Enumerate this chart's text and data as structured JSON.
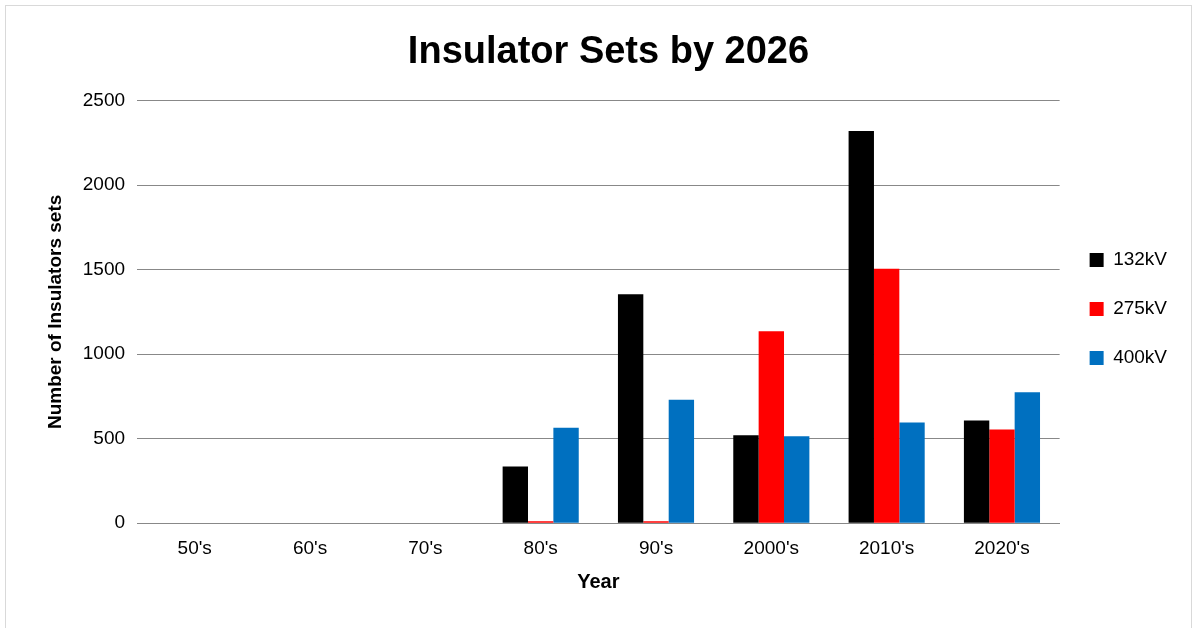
{
  "chart_data": {
    "type": "bar",
    "title": "Insulator Sets by 2026",
    "xlabel": "Year",
    "ylabel": "Number of Insulators sets",
    "categories": [
      "50's",
      "60's",
      "70's",
      "80's",
      "90's",
      "2000's",
      "2010's",
      "2020's"
    ],
    "series": [
      {
        "name": "132kV",
        "color": "#000000",
        "values": [
          0,
          0,
          0,
          335,
          1355,
          520,
          2320,
          608
        ]
      },
      {
        "name": "275kV",
        "color": "#ff0000",
        "values": [
          0,
          0,
          0,
          12,
          12,
          1135,
          1505,
          555
        ]
      },
      {
        "name": "400kV",
        "color": "#0070c0",
        "values": [
          0,
          0,
          0,
          565,
          730,
          515,
          595,
          775
        ]
      }
    ],
    "ylim": [
      0,
      2500
    ],
    "yticks": [
      0,
      500,
      1000,
      1500,
      2000,
      2500
    ],
    "grid": "y",
    "legend": "right"
  }
}
